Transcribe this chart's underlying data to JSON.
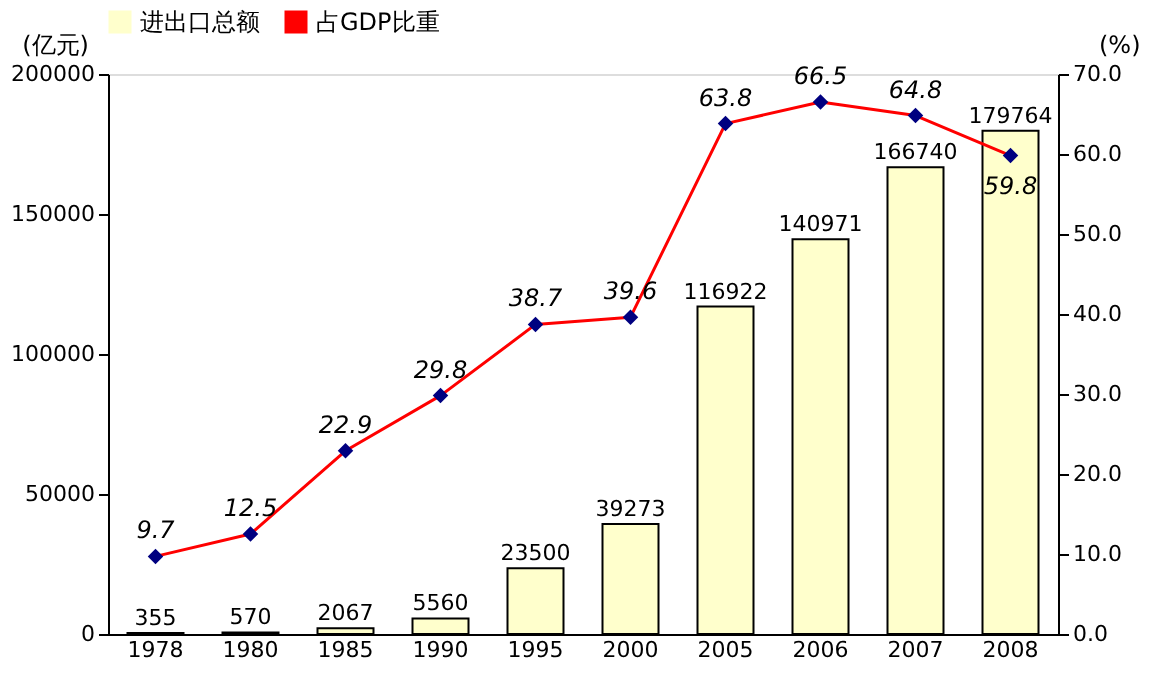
{
  "chart_data": {
    "type": "bar",
    "categories": [
      "1978",
      "1980",
      "1985",
      "1990",
      "1995",
      "2000",
      "2005",
      "2006",
      "2007",
      "2008"
    ],
    "series": [
      {
        "name": "进出口总额",
        "color": "#ffffcc",
        "values": [
          355,
          570,
          2067,
          5560,
          23500,
          39273,
          116922,
          140971,
          166740,
          179764
        ]
      },
      {
        "name": "占GDP比重",
        "type": "line",
        "axis": "y2",
        "color": "#ff0000",
        "marker": "diamond",
        "values": [
          9.7,
          12.5,
          22.9,
          29.8,
          38.7,
          39.6,
          63.8,
          66.5,
          64.8,
          59.8
        ]
      }
    ],
    "ylabel": "(亿元)",
    "y2label": "(%)",
    "ylim": [
      0,
      200000
    ],
    "yticks": [
      0,
      50000,
      100000,
      150000,
      200000
    ],
    "y2lim": [
      0,
      70
    ],
    "y2ticks": [
      {
        "value": 0,
        "label": "0.0"
      },
      {
        "value": 10,
        "label": "10.0"
      },
      {
        "value": 20,
        "label": "20.0"
      },
      {
        "value": 30,
        "label": "30.0"
      },
      {
        "value": 40,
        "label": "40.0"
      },
      {
        "value": 50,
        "label": "50.0"
      },
      {
        "value": 60,
        "label": "60.0"
      },
      {
        "value": 70,
        "label": "70.0"
      }
    ],
    "data_labels": true,
    "grid": false,
    "legend": "top"
  }
}
